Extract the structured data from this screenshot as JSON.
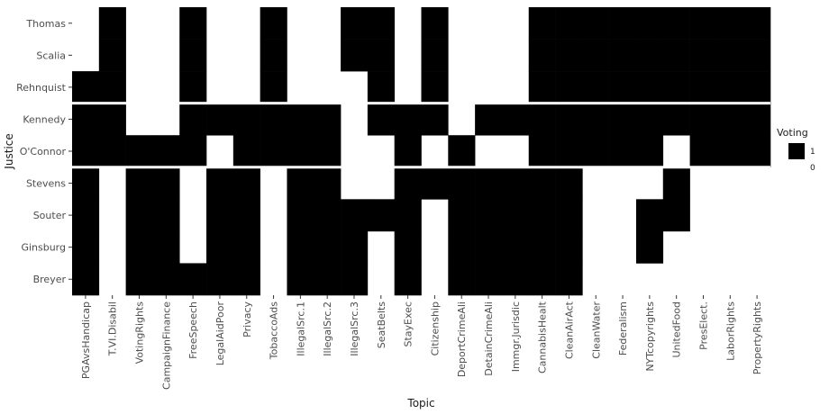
{
  "chart_data": {
    "type": "heatmap",
    "title": "",
    "xlabel": "Topic",
    "ylabel": "Justice",
    "grid": false,
    "legend": {
      "title": "Voting",
      "labels": [
        "1",
        "0"
      ],
      "placement": "right"
    },
    "colors": {
      "one": "#000000",
      "zero": "#ffffff"
    },
    "justices": [
      "Thomas",
      "Scalia",
      "Rehnquist",
      "Kennedy",
      "O'Connor",
      "Stevens",
      "Souter",
      "Ginsburg",
      "Breyer"
    ],
    "topics": [
      "PGAvsHandicap",
      "T.VI.Disabil",
      "VotingRights",
      "CampaignFinance",
      "FreeSpeech",
      "LegalAidPoor",
      "Privacy",
      "TobaccoAds",
      "IllegalSrc.1",
      "IllegalSrc.2",
      "IllegalSrc.3",
      "SeatBelts",
      "StayExec",
      "Citizenship",
      "DeportCrimeAli",
      "DetainCrimeAli",
      "Immgr.Jurisdic",
      "CannabisHealt",
      "CleanAirAct",
      "CleanWater",
      "Federalism",
      "NYTcopyrights",
      "UnitedFood",
      "PresElect.",
      "LaborRights",
      "PropertyRights"
    ],
    "values": [
      [
        0,
        1,
        0,
        0,
        1,
        0,
        0,
        1,
        0,
        0,
        1,
        1,
        0,
        1,
        0,
        0,
        0,
        1,
        1,
        1,
        1,
        1,
        1,
        1,
        1,
        1
      ],
      [
        0,
        1,
        0,
        0,
        1,
        0,
        0,
        1,
        0,
        0,
        1,
        1,
        0,
        1,
        0,
        0,
        0,
        1,
        1,
        1,
        1,
        1,
        1,
        1,
        1,
        1
      ],
      [
        1,
        1,
        0,
        0,
        1,
        0,
        0,
        1,
        0,
        0,
        0,
        1,
        0,
        1,
        0,
        0,
        0,
        1,
        1,
        1,
        1,
        1,
        1,
        1,
        1,
        1
      ],
      [
        1,
        1,
        0,
        0,
        1,
        1,
        1,
        1,
        1,
        1,
        0,
        1,
        1,
        1,
        0,
        1,
        1,
        1,
        1,
        1,
        1,
        1,
        1,
        1,
        1,
        1
      ],
      [
        1,
        1,
        1,
        1,
        1,
        0,
        1,
        1,
        1,
        1,
        0,
        0,
        1,
        0,
        1,
        0,
        0,
        1,
        1,
        1,
        1,
        1,
        0,
        1,
        1,
        1
      ],
      [
        1,
        0,
        1,
        1,
        0,
        1,
        1,
        0,
        1,
        1,
        0,
        0,
        1,
        1,
        1,
        1,
        1,
        1,
        1,
        0,
        0,
        0,
        1,
        0,
        0,
        0
      ],
      [
        1,
        0,
        1,
        1,
        0,
        1,
        1,
        0,
        1,
        1,
        1,
        1,
        1,
        0,
        1,
        1,
        1,
        1,
        1,
        0,
        0,
        1,
        1,
        0,
        0,
        0
      ],
      [
        1,
        0,
        1,
        1,
        0,
        1,
        1,
        0,
        1,
        1,
        1,
        0,
        1,
        0,
        1,
        1,
        1,
        1,
        1,
        0,
        0,
        1,
        0,
        0,
        0,
        0
      ],
      [
        1,
        0,
        1,
        1,
        1,
        1,
        1,
        0,
        1,
        1,
        1,
        0,
        1,
        0,
        1,
        1,
        1,
        1,
        1,
        0,
        0,
        0,
        0,
        0,
        0,
        0
      ]
    ],
    "row_breaks_after": [
      "Rehnquist",
      "O'Connor"
    ]
  }
}
